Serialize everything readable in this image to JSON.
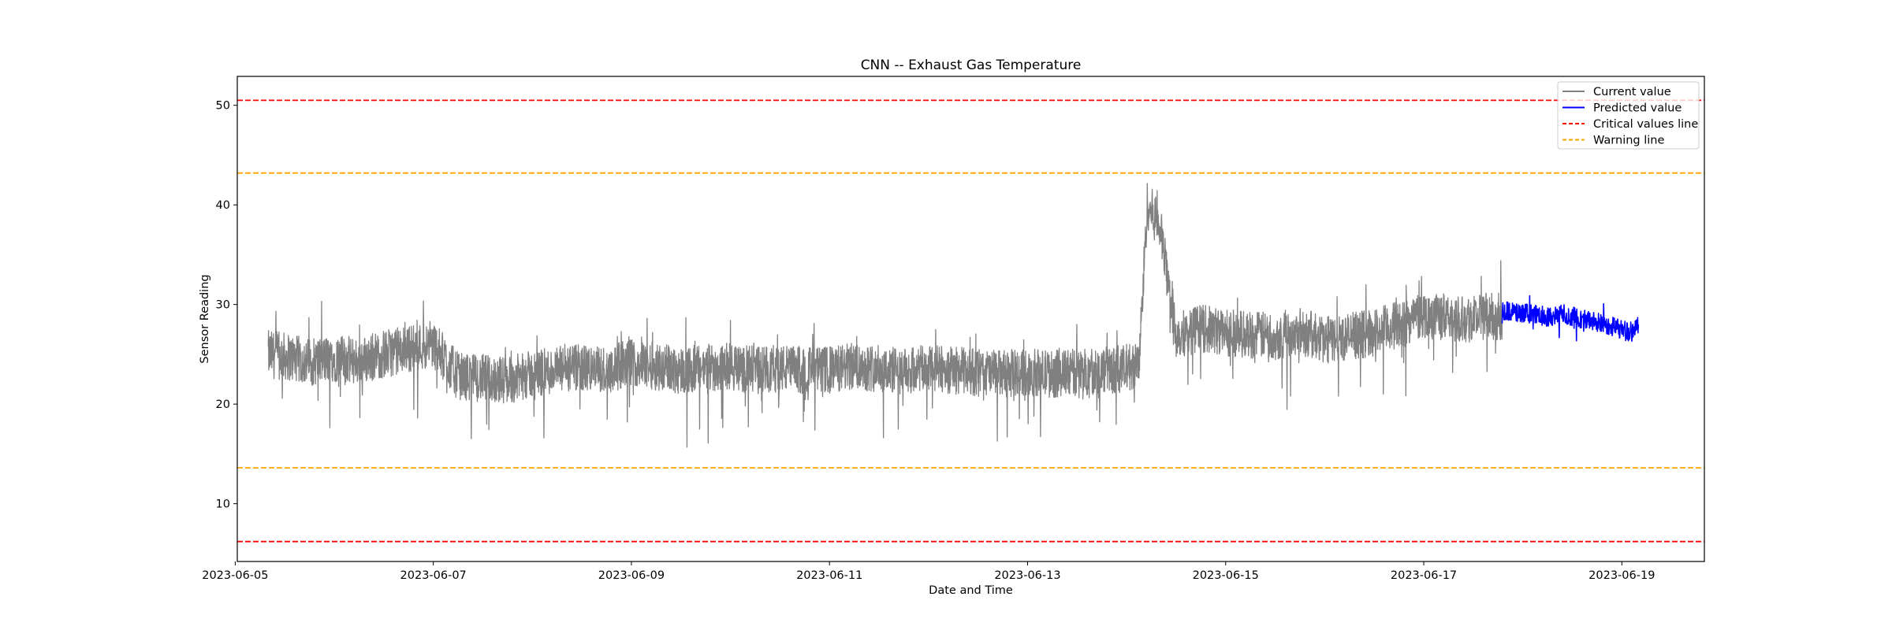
{
  "chart_data": {
    "type": "line",
    "title": "CNN -- Exhaust Gas Temperature",
    "xlabel": "Date and Time",
    "ylabel": "Sensor Reading",
    "xlim": [
      "2023-06-05T00:30",
      "2023-06-19T20:00"
    ],
    "ylim": [
      4.2,
      52.9
    ],
    "xticks": [
      "2023-06-05",
      "2023-06-07",
      "2023-06-09",
      "2023-06-11",
      "2023-06-13",
      "2023-06-15",
      "2023-06-17",
      "2023-06-19"
    ],
    "yticks": [
      10,
      20,
      30,
      40,
      50
    ],
    "grid": false,
    "legend_position": "top-right",
    "colors": {
      "current": "#808080",
      "predicted": "#0000ff",
      "critical": "#ff0000",
      "warning": "#ffa500"
    },
    "reference_lines": [
      {
        "name": "Critical values line",
        "y": 50.5,
        "color": "#ff0000"
      },
      {
        "name": "Warning line",
        "y": 43.2,
        "color": "#ffa500"
      },
      {
        "name": "Warning line",
        "y": 13.6,
        "color": "#ffa500"
      },
      {
        "name": "Critical values line",
        "y": 6.2,
        "color": "#ff0000"
      }
    ],
    "series": [
      {
        "name": "Current value",
        "color": "#808080",
        "x": [
          "2023-06-05T08:00",
          "2023-06-05T12:00",
          "2023-06-05T18:00",
          "2023-06-06T00:00",
          "2023-06-06T06:00",
          "2023-06-06T12:00",
          "2023-06-06T18:00",
          "2023-06-07T00:00",
          "2023-06-07T06:00",
          "2023-06-07T12:00",
          "2023-06-07T18:00",
          "2023-06-08T00:00",
          "2023-06-08T06:00",
          "2023-06-08T12:00",
          "2023-06-08T18:00",
          "2023-06-09T00:00",
          "2023-06-09T06:00",
          "2023-06-09T12:00",
          "2023-06-09T18:00",
          "2023-06-10T00:00",
          "2023-06-10T06:00",
          "2023-06-10T12:00",
          "2023-06-10T18:00",
          "2023-06-11T00:00",
          "2023-06-11T06:00",
          "2023-06-11T12:00",
          "2023-06-11T18:00",
          "2023-06-12T00:00",
          "2023-06-12T06:00",
          "2023-06-12T12:00",
          "2023-06-12T18:00",
          "2023-06-13T00:00",
          "2023-06-13T06:00",
          "2023-06-13T12:00",
          "2023-06-13T18:00",
          "2023-06-14T00:00",
          "2023-06-14T03:00",
          "2023-06-14T05:00",
          "2023-06-14T08:00",
          "2023-06-14T12:00",
          "2023-06-14T18:00",
          "2023-06-15T00:00",
          "2023-06-15T06:00",
          "2023-06-15T12:00",
          "2023-06-15T18:00",
          "2023-06-16T00:00",
          "2023-06-16T06:00",
          "2023-06-16T12:00",
          "2023-06-16T18:00",
          "2023-06-17T00:00",
          "2023-06-17T06:00",
          "2023-06-17T12:00",
          "2023-06-17T19:00"
        ],
        "y": [
          25.0,
          24.8,
          24.2,
          24.6,
          24.3,
          25.0,
          25.6,
          26.0,
          22.8,
          22.6,
          22.4,
          23.0,
          23.4,
          23.6,
          23.4,
          24.2,
          23.8,
          23.4,
          23.6,
          23.8,
          23.4,
          23.6,
          23.4,
          23.4,
          23.8,
          23.6,
          23.2,
          23.6,
          23.4,
          23.2,
          23.0,
          23.2,
          23.0,
          23.2,
          23.4,
          23.6,
          24.0,
          40.0,
          38.0,
          27.0,
          27.6,
          27.2,
          27.0,
          26.8,
          27.4,
          26.4,
          26.8,
          27.2,
          28.0,
          29.0,
          28.6,
          28.8,
          28.8
        ]
      },
      {
        "name": "Predicted value",
        "color": "#0000ff",
        "x": [
          "2023-06-17T19:00",
          "2023-06-17T22:00",
          "2023-06-18T02:00",
          "2023-06-18T06:00",
          "2023-06-18T10:00",
          "2023-06-18T14:00",
          "2023-06-18T18:00",
          "2023-06-18T22:00",
          "2023-06-19T02:00",
          "2023-06-19T04:00"
        ],
        "y": [
          29.4,
          29.2,
          29.0,
          28.8,
          29.0,
          28.6,
          28.2,
          27.8,
          27.2,
          28.0
        ]
      }
    ]
  }
}
